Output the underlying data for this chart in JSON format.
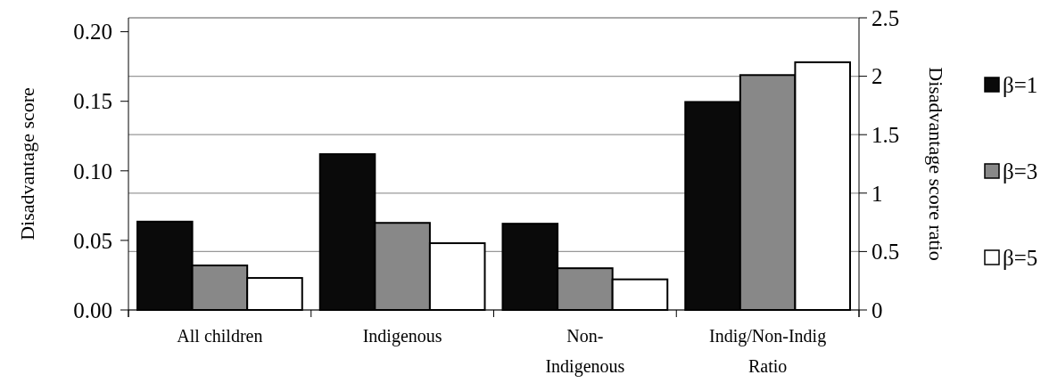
{
  "chart_data": {
    "type": "bar",
    "categories": [
      "All children",
      "Indigenous",
      "Non-\nIndigenous",
      "Indig/Non-Indig\nRatio"
    ],
    "series": [
      {
        "name": "β=1",
        "color": "#0a0a0a",
        "values": [
          0.0635,
          0.112,
          0.062,
          null
        ]
      },
      {
        "name": "β=3",
        "color": "#888888",
        "values": [
          0.032,
          0.0626,
          0.03,
          null
        ]
      },
      {
        "name": "β=5",
        "color": "#ffffff",
        "values": [
          0.023,
          0.048,
          0.022,
          null
        ]
      },
      {
        "color": "#0a0a0a",
        "axis": "y2",
        "values": [
          null,
          null,
          null,
          1.78
        ]
      },
      {
        "color": "#888888",
        "axis": "y2",
        "values": [
          null,
          null,
          null,
          2.01
        ]
      },
      {
        "color": "#ffffff",
        "axis": "y2",
        "values": [
          null,
          null,
          null,
          2.12
        ]
      }
    ],
    "ylabel": "Disadvantage score",
    "y2label": "Disadvantage score ratio",
    "ylim": [
      0,
      0.21
    ],
    "yticks": [
      {
        "value": 0,
        "label": "0.00"
      },
      0.05,
      {
        "value": 0.1,
        "label": "0.10"
      },
      0.15,
      {
        "value": 0.2,
        "label": "0.20"
      }
    ],
    "y2lim": [
      0,
      2.5
    ],
    "y2ticks": [
      0,
      0.5,
      1,
      1.5,
      2,
      2.5
    ],
    "grid": "y2",
    "legend": "right"
  }
}
